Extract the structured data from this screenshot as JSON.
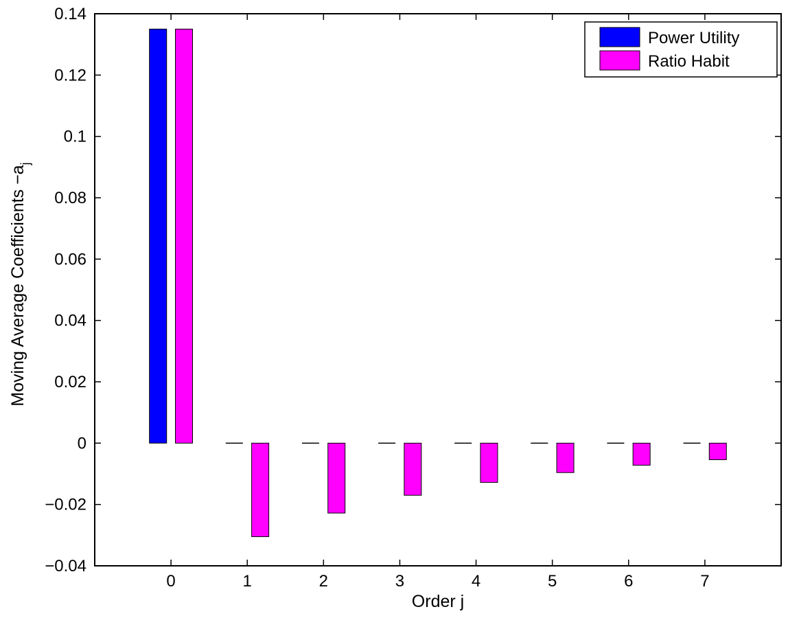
{
  "chart_data": {
    "type": "bar",
    "categories": [
      "0",
      "1",
      "2",
      "3",
      "4",
      "5",
      "6",
      "7"
    ],
    "series": [
      {
        "name": "Power Utility",
        "color": "#0000ff",
        "values": [
          0.135,
          0,
          0,
          0,
          0,
          0,
          0,
          0
        ]
      },
      {
        "name": "Ratio Habit",
        "color": "#ff00ff",
        "values": [
          0.135,
          -0.0305,
          -0.0228,
          -0.017,
          -0.0128,
          -0.0096,
          -0.0072,
          -0.0054
        ]
      }
    ],
    "xlabel": "Order j",
    "ylabel": "Moving Average Coefficients −a",
    "ylabel_subscript": "j",
    "ylim": [
      -0.04,
      0.14
    ],
    "xlim": [
      -1,
      8
    ],
    "yticks": [
      -0.04,
      -0.02,
      0,
      0.02,
      0.04,
      0.06,
      0.08,
      0.1,
      0.12,
      0.14
    ],
    "ytick_labels": [
      "−0.04",
      "−0.02",
      "0",
      "0.02",
      "0.04",
      "0.06",
      "0.08",
      "0.1",
      "0.12",
      "0.14"
    ],
    "grid": false,
    "legend_position": "top-right"
  }
}
